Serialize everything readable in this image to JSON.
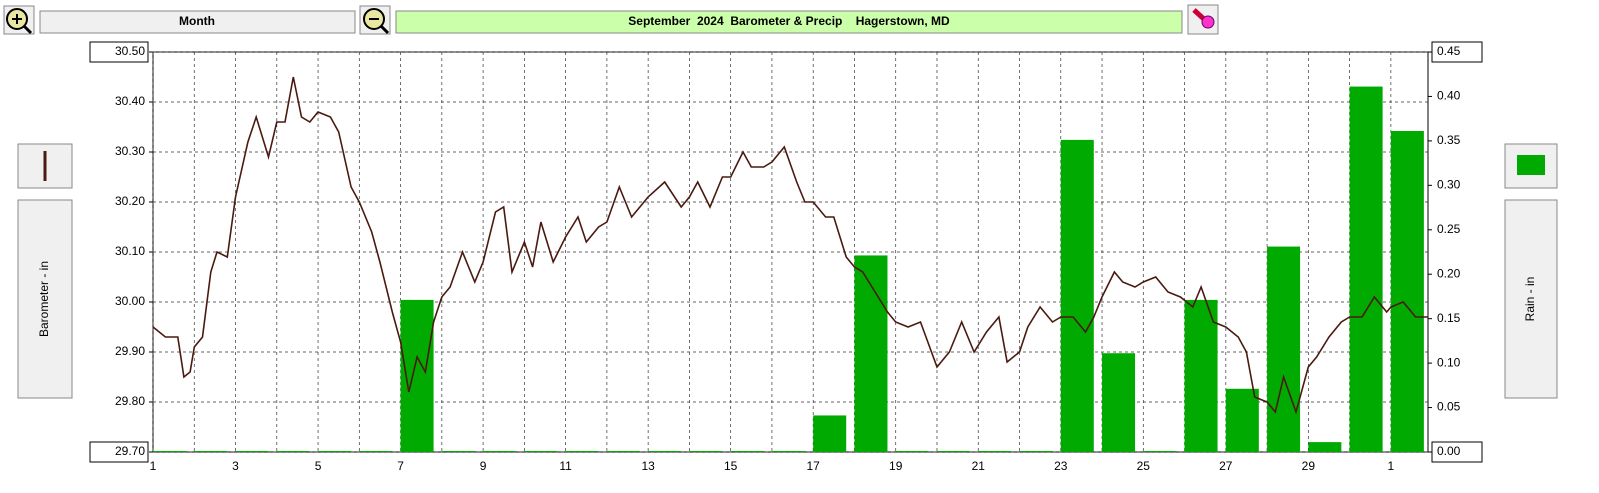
{
  "chart_data": {
    "type": "combo",
    "title": "September  2024  Barometer & Precip    Hagerstown, MD",
    "period_button": "Month",
    "y_label": "Barometer - in",
    "y2_label": "Rain - in",
    "xlim": [
      1,
      31.9
    ],
    "xticks": [
      1,
      3,
      5,
      7,
      9,
      11,
      13,
      15,
      17,
      19,
      21,
      23,
      25,
      27,
      29,
      {
        "value": 31,
        "label": "1"
      }
    ],
    "x_minor_ticks": [
      2,
      4,
      6,
      8,
      10,
      12,
      14,
      16,
      18,
      20,
      22,
      24,
      26,
      28,
      30
    ],
    "ylim": [
      29.7,
      30.5
    ],
    "yticks": [
      {
        "value": 30.5,
        "label": "30.50"
      },
      {
        "value": 30.4,
        "label": "30.40"
      },
      {
        "value": 30.3,
        "label": "30.30"
      },
      {
        "value": 30.2,
        "label": "30.20"
      },
      {
        "value": 30.1,
        "label": "30.10"
      },
      {
        "value": 30.0,
        "label": "30.00"
      },
      {
        "value": 29.9,
        "label": "29.90"
      },
      {
        "value": 29.8,
        "label": "29.80"
      },
      {
        "value": 29.7,
        "label": "29.70"
      }
    ],
    "y2lim": [
      0,
      0.45
    ],
    "y2ticks": [
      {
        "value": 0.45,
        "label": "0.45"
      },
      {
        "value": 0.4,
        "label": "0.40"
      },
      {
        "value": 0.35,
        "label": "0.35"
      },
      {
        "value": 0.3,
        "label": "0.30"
      },
      {
        "value": 0.25,
        "label": "0.25"
      },
      {
        "value": 0.2,
        "label": "0.20"
      },
      {
        "value": 0.15,
        "label": "0.15"
      },
      {
        "value": 0.1,
        "label": "0.10"
      },
      {
        "value": 0.05,
        "label": "0.05"
      },
      {
        "value": 0,
        "label": "0.00"
      }
    ],
    "grid": true,
    "series": [
      {
        "type": "line",
        "color": "#4a1a10",
        "x": [
          1.0,
          1.3,
          1.6,
          1.75,
          1.9,
          2.0,
          2.2,
          2.4,
          2.55,
          2.8,
          3.0,
          3.3,
          3.5,
          3.8,
          4.0,
          4.2,
          4.4,
          4.6,
          4.8,
          5.0,
          5.3,
          5.5,
          5.8,
          6.0,
          6.3,
          6.5,
          6.8,
          7.0,
          7.2,
          7.4,
          7.6,
          7.8,
          8.0,
          8.2,
          8.5,
          8.8,
          9.0,
          9.3,
          9.5,
          9.7,
          10.0,
          10.2,
          10.4,
          10.7,
          11.0,
          11.3,
          11.5,
          11.8,
          12.0,
          12.3,
          12.6,
          13.0,
          13.4,
          13.8,
          14.0,
          14.2,
          14.5,
          14.8,
          15.0,
          15.3,
          15.5,
          15.8,
          16.0,
          16.3,
          16.6,
          16.8,
          17.0,
          17.3,
          17.5,
          17.8,
          18.0,
          18.2,
          18.5,
          18.8,
          19.0,
          19.3,
          19.6,
          20.0,
          20.3,
          20.6,
          20.9,
          21.2,
          21.5,
          21.7,
          22.0,
          22.2,
          22.5,
          22.8,
          23.0,
          23.3,
          23.6,
          23.8,
          24.0,
          24.3,
          24.5,
          24.8,
          25.0,
          25.3,
          25.6,
          25.9,
          26.2,
          26.4,
          26.7,
          27.0,
          27.3,
          27.5,
          27.7,
          28.0,
          28.2,
          28.4,
          28.7,
          29.0,
          29.2,
          29.5,
          29.8,
          30.0,
          30.3,
          30.6,
          30.9,
          31.0,
          31.3,
          31.6,
          31.9
        ],
        "values": [
          29.95,
          29.93,
          29.93,
          29.85,
          29.86,
          29.91,
          29.93,
          30.06,
          30.1,
          30.09,
          30.21,
          30.32,
          30.37,
          30.29,
          30.36,
          30.36,
          30.45,
          30.37,
          30.36,
          30.38,
          30.37,
          30.34,
          30.23,
          30.2,
          30.14,
          30.08,
          29.98,
          29.92,
          29.82,
          29.89,
          29.86,
          29.96,
          30.01,
          30.03,
          30.1,
          30.04,
          30.08,
          30.18,
          30.19,
          30.06,
          30.12,
          30.07,
          30.16,
          30.08,
          30.13,
          30.17,
          30.12,
          30.15,
          30.16,
          30.23,
          30.17,
          30.21,
          30.24,
          30.19,
          30.21,
          30.24,
          30.19,
          30.25,
          30.25,
          30.3,
          30.27,
          30.27,
          30.28,
          30.31,
          30.24,
          30.2,
          30.2,
          30.17,
          30.17,
          30.09,
          30.07,
          30.06,
          30.02,
          29.98,
          29.96,
          29.95,
          29.96,
          29.87,
          29.9,
          29.96,
          29.9,
          29.94,
          29.97,
          29.88,
          29.9,
          29.95,
          29.99,
          29.96,
          29.97,
          29.97,
          29.94,
          29.97,
          30.01,
          30.06,
          30.04,
          30.03,
          30.04,
          30.05,
          30.02,
          30.01,
          29.99,
          30.03,
          29.96,
          29.95,
          29.93,
          29.9,
          29.81,
          29.8,
          29.78,
          29.85,
          29.78,
          29.87,
          29.89,
          29.93,
          29.96,
          29.97,
          29.97,
          30.01,
          29.98,
          29.99,
          30.0,
          29.97,
          29.97
        ]
      },
      {
        "type": "bar",
        "axis": "y2",
        "color": "#00aa00",
        "x": [
          1,
          2,
          3,
          4,
          5,
          6,
          7,
          8,
          9,
          10,
          11,
          12,
          13,
          14,
          15,
          16,
          17,
          18,
          19,
          20,
          21,
          22,
          23,
          24,
          25,
          26,
          27,
          28,
          29,
          30,
          31
        ],
        "values": [
          0,
          0,
          0,
          0,
          0,
          0,
          0.17,
          0,
          0,
          0,
          0,
          0,
          0,
          0,
          0,
          0,
          0.04,
          0.22,
          0,
          0,
          0,
          0,
          0.35,
          0.11,
          0,
          0.17,
          0.07,
          0.23,
          0.01,
          0.41,
          0.36
        ]
      }
    ]
  }
}
